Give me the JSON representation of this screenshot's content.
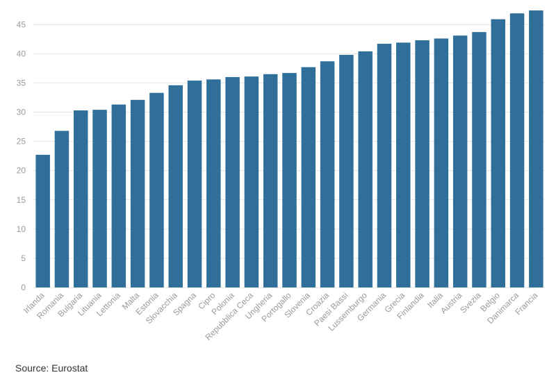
{
  "chart_data": {
    "type": "bar",
    "categories": [
      "Irlanda",
      "Romania",
      "Bulgaria",
      "Lituania",
      "Lettonia",
      "Malta",
      "Estonia",
      "Slovacchia",
      "Spagna",
      "Cipro",
      "Polonia",
      "Repubblica Ceca",
      "Ungheria",
      "Portogallo",
      "Slovenia",
      "Croazia",
      "Paesi Bassi",
      "Lussemburgo",
      "Germania",
      "Grecia",
      "Finlandia",
      "Italia",
      "Austria",
      "Svezia",
      "Belgio",
      "Danimarca",
      "Francia"
    ],
    "values": [
      22.7,
      26.8,
      30.3,
      30.4,
      31.3,
      32.1,
      33.3,
      34.6,
      35.4,
      35.6,
      36.0,
      36.1,
      36.5,
      36.7,
      37.7,
      38.7,
      39.8,
      40.4,
      41.7,
      41.9,
      42.3,
      42.6,
      43.1,
      43.7,
      45.9,
      46.9,
      47.4
    ],
    "ylim": [
      0,
      48
    ],
    "yticks": [
      0,
      5,
      10,
      15,
      20,
      25,
      30,
      35,
      40,
      45
    ],
    "grid": true,
    "bar_color": "#2f6f99"
  },
  "source_note": "Source: Eurostat"
}
